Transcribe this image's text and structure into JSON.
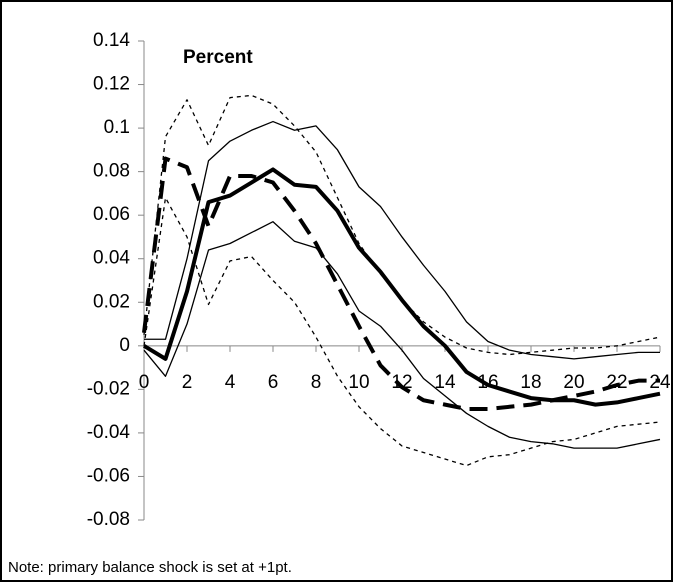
{
  "chart_data": {
    "type": "line",
    "annotation": "Percent",
    "note": "Note: primary balance shock is set at +1pt.",
    "x": [
      0,
      1,
      2,
      3,
      4,
      5,
      6,
      7,
      8,
      9,
      10,
      11,
      12,
      13,
      14,
      15,
      16,
      17,
      18,
      19,
      20,
      21,
      22,
      23,
      24
    ],
    "xlim": [
      0,
      24
    ],
    "xticks": [
      0,
      2,
      4,
      6,
      8,
      10,
      12,
      14,
      16,
      18,
      20,
      22,
      24
    ],
    "ylim": [
      -0.08,
      0.14
    ],
    "yticks": [
      0.14,
      0.12,
      0.1,
      0.08,
      0.06,
      0.04,
      0.02,
      0,
      -0.02,
      -0.04,
      -0.06,
      -0.08
    ],
    "series": [
      {
        "color": "#000000",
        "width": 1.3,
        "dash": "4 4",
        "values": [
          0.005,
          0.096,
          0.113,
          0.092,
          0.114,
          0.115,
          0.111,
          0.101,
          0.089,
          0.068,
          0.047,
          0.033,
          0.021,
          0.011,
          0.004,
          -0.001,
          -0.003,
          -0.004,
          -0.003,
          -0.002,
          -0.001,
          -0.001,
          0,
          0.002,
          0.004
        ]
      },
      {
        "color": "#000000",
        "width": 1.3,
        "dash": "4 4",
        "values": [
          0,
          0.068,
          0.05,
          0.019,
          0.039,
          0.041,
          0.03,
          0.02,
          0.004,
          -0.014,
          -0.028,
          -0.038,
          -0.046,
          -0.049,
          -0.052,
          -0.055,
          -0.051,
          -0.05,
          -0.047,
          -0.044,
          -0.043,
          -0.04,
          -0.037,
          -0.036,
          -0.035
        ]
      },
      {
        "color": "#000000",
        "width": 1.3,
        "dash": "none",
        "values": [
          0.003,
          0.003,
          0.04,
          0.085,
          0.094,
          0.099,
          0.103,
          0.099,
          0.101,
          0.09,
          0.073,
          0.064,
          0.05,
          0.037,
          0.025,
          0.011,
          0.002,
          -0.002,
          -0.004,
          -0.005,
          -0.006,
          -0.005,
          -0.004,
          -0.003,
          -0.003
        ]
      },
      {
        "color": "#000000",
        "width": 1.3,
        "dash": "none",
        "values": [
          -0.002,
          -0.014,
          0.01,
          0.044,
          0.047,
          0.052,
          0.057,
          0.048,
          0.045,
          0.033,
          0.016,
          0.009,
          -0.002,
          -0.015,
          -0.023,
          -0.031,
          -0.037,
          -0.042,
          -0.044,
          -0.045,
          -0.047,
          -0.047,
          -0.047,
          -0.045,
          -0.043
        ]
      },
      {
        "color": "#000000",
        "width": 4,
        "dash": "18 9",
        "values": [
          0.006,
          0.086,
          0.082,
          0.055,
          0.078,
          0.078,
          0.075,
          0.062,
          0.047,
          0.028,
          0.009,
          -0.009,
          -0.019,
          -0.025,
          -0.027,
          -0.029,
          -0.029,
          -0.028,
          -0.027,
          -0.025,
          -0.023,
          -0.021,
          -0.018,
          -0.016,
          -0.016
        ]
      },
      {
        "color": "#000000",
        "width": 4,
        "dash": "none",
        "values": [
          0,
          -0.006,
          0.025,
          0.066,
          0.069,
          0.075,
          0.081,
          0.074,
          0.073,
          0.062,
          0.045,
          0.034,
          0.021,
          0.009,
          0,
          -0.012,
          -0.018,
          -0.021,
          -0.024,
          -0.025,
          -0.025,
          -0.027,
          -0.026,
          -0.024,
          -0.022
        ]
      }
    ]
  }
}
